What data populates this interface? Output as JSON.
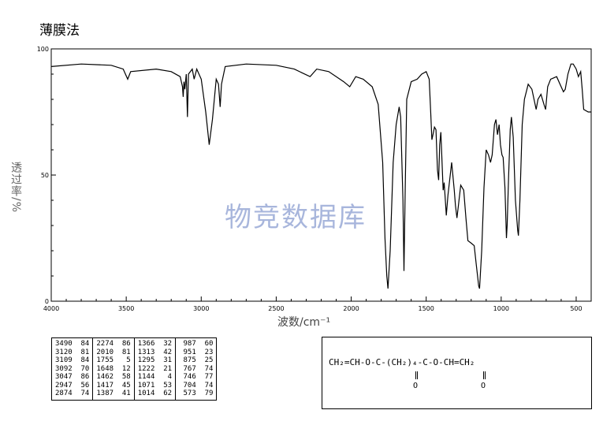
{
  "page_title": "薄膜法",
  "watermark": "物竞数据库",
  "chart_data": {
    "type": "line",
    "xlabel": "波数/cm⁻¹",
    "ylabel": "透过率/%",
    "xlim": [
      4000,
      400
    ],
    "ylim": [
      0,
      100
    ],
    "x_ticks": [
      "4000",
      "3500",
      "3000",
      "2500",
      "2000",
      "1500",
      "1000",
      "500"
    ],
    "y_ticks": [
      "0",
      "50",
      "100"
    ],
    "grid": false,
    "series": [
      {
        "points": [
          [
            4000,
            93
          ],
          [
            3800,
            94
          ],
          [
            3600,
            93.5
          ],
          [
            3520,
            92
          ],
          [
            3490,
            88
          ],
          [
            3470,
            91
          ],
          [
            3300,
            92
          ],
          [
            3200,
            91
          ],
          [
            3140,
            89
          ],
          [
            3125,
            85
          ],
          [
            3120,
            81
          ],
          [
            3115,
            87
          ],
          [
            3109,
            84
          ],
          [
            3100,
            90
          ],
          [
            3092,
            73
          ],
          [
            3085,
            90
          ],
          [
            3060,
            92
          ],
          [
            3047,
            88
          ],
          [
            3030,
            92
          ],
          [
            3000,
            88
          ],
          [
            2970,
            75
          ],
          [
            2947,
            62
          ],
          [
            2925,
            72
          ],
          [
            2900,
            88
          ],
          [
            2885,
            86
          ],
          [
            2874,
            77
          ],
          [
            2865,
            86
          ],
          [
            2840,
            93
          ],
          [
            2700,
            94
          ],
          [
            2500,
            93.5
          ],
          [
            2380,
            92
          ],
          [
            2274,
            89
          ],
          [
            2230,
            92
          ],
          [
            2150,
            91
          ],
          [
            2050,
            87
          ],
          [
            2010,
            85
          ],
          [
            1970,
            89
          ],
          [
            1920,
            88
          ],
          [
            1860,
            85
          ],
          [
            1820,
            78
          ],
          [
            1790,
            55
          ],
          [
            1775,
            25
          ],
          [
            1763,
            10
          ],
          [
            1755,
            5
          ],
          [
            1740,
            20
          ],
          [
            1720,
            55
          ],
          [
            1700,
            70
          ],
          [
            1680,
            77
          ],
          [
            1670,
            73
          ],
          [
            1655,
            40
          ],
          [
            1648,
            12
          ],
          [
            1640,
            45
          ],
          [
            1630,
            80
          ],
          [
            1600,
            87
          ],
          [
            1560,
            88
          ],
          [
            1530,
            90
          ],
          [
            1500,
            91
          ],
          [
            1480,
            88
          ],
          [
            1470,
            75
          ],
          [
            1462,
            64
          ],
          [
            1455,
            66
          ],
          [
            1445,
            69
          ],
          [
            1435,
            68
          ],
          [
            1425,
            52
          ],
          [
            1417,
            48
          ],
          [
            1410,
            62
          ],
          [
            1402,
            67
          ],
          [
            1387,
            44
          ],
          [
            1380,
            47
          ],
          [
            1370,
            38
          ],
          [
            1366,
            34
          ],
          [
            1355,
            42
          ],
          [
            1330,
            55
          ],
          [
            1313,
            44
          ],
          [
            1305,
            38
          ],
          [
            1295,
            33
          ],
          [
            1285,
            38
          ],
          [
            1270,
            46
          ],
          [
            1250,
            44
          ],
          [
            1235,
            33
          ],
          [
            1222,
            24
          ],
          [
            1200,
            23
          ],
          [
            1180,
            22
          ],
          [
            1165,
            14
          ],
          [
            1150,
            6
          ],
          [
            1144,
            5
          ],
          [
            1130,
            20
          ],
          [
            1115,
            45
          ],
          [
            1100,
            60
          ],
          [
            1085,
            58
          ],
          [
            1071,
            55
          ],
          [
            1060,
            58
          ],
          [
            1045,
            70
          ],
          [
            1035,
            72
          ],
          [
            1025,
            66
          ],
          [
            1014,
            70
          ],
          [
            1005,
            62
          ],
          [
            995,
            58
          ],
          [
            987,
            57
          ],
          [
            975,
            45
          ],
          [
            965,
            25
          ],
          [
            960,
            30
          ],
          [
            950,
            50
          ],
          [
            940,
            68
          ],
          [
            932,
            73
          ],
          [
            920,
            65
          ],
          [
            905,
            40
          ],
          [
            890,
            28
          ],
          [
            885,
            26
          ],
          [
            875,
            40
          ],
          [
            860,
            70
          ],
          [
            845,
            80
          ],
          [
            820,
            86
          ],
          [
            795,
            84
          ],
          [
            767,
            76
          ],
          [
            755,
            80
          ],
          [
            735,
            82
          ],
          [
            715,
            78
          ],
          [
            704,
            76
          ],
          [
            690,
            85
          ],
          [
            670,
            88
          ],
          [
            630,
            89
          ],
          [
            600,
            85
          ],
          [
            585,
            83
          ],
          [
            573,
            84
          ],
          [
            555,
            90
          ],
          [
            535,
            94
          ],
          [
            520,
            94
          ],
          [
            500,
            92
          ],
          [
            485,
            89
          ],
          [
            470,
            91
          ],
          [
            460,
            84
          ],
          [
            450,
            76
          ],
          [
            420,
            75
          ],
          [
            400,
            75
          ]
        ]
      }
    ],
    "peak_table": [
      [
        "3490",
        "84"
      ],
      [
        "3120",
        "81"
      ],
      [
        "3109",
        "84"
      ],
      [
        "3092",
        "70"
      ],
      [
        "3047",
        "86"
      ],
      [
        "2947",
        "56"
      ],
      [
        "2874",
        "74"
      ],
      [
        "2274",
        "86"
      ],
      [
        "2010",
        "81"
      ],
      [
        "1755",
        "5"
      ],
      [
        "1648",
        "12"
      ],
      [
        "1462",
        "58"
      ],
      [
        "1417",
        "45"
      ],
      [
        "1387",
        "41"
      ],
      [
        "1366",
        "32"
      ],
      [
        "1313",
        "42"
      ],
      [
        "1295",
        "31"
      ],
      [
        "1222",
        "21"
      ],
      [
        "1144",
        "4"
      ],
      [
        "1071",
        "53"
      ],
      [
        "1014",
        "62"
      ],
      [
        "987",
        "60"
      ],
      [
        "951",
        "23"
      ],
      [
        "875",
        "25"
      ],
      [
        "767",
        "74"
      ],
      [
        "746",
        "77"
      ],
      [
        "704",
        "74"
      ],
      [
        "573",
        "79"
      ]
    ]
  },
  "structure": {
    "formula": "CH₂=CH-O-C-(CH₂)₄-C-O-CH=CH₂",
    "carbonyl_o": "O"
  }
}
